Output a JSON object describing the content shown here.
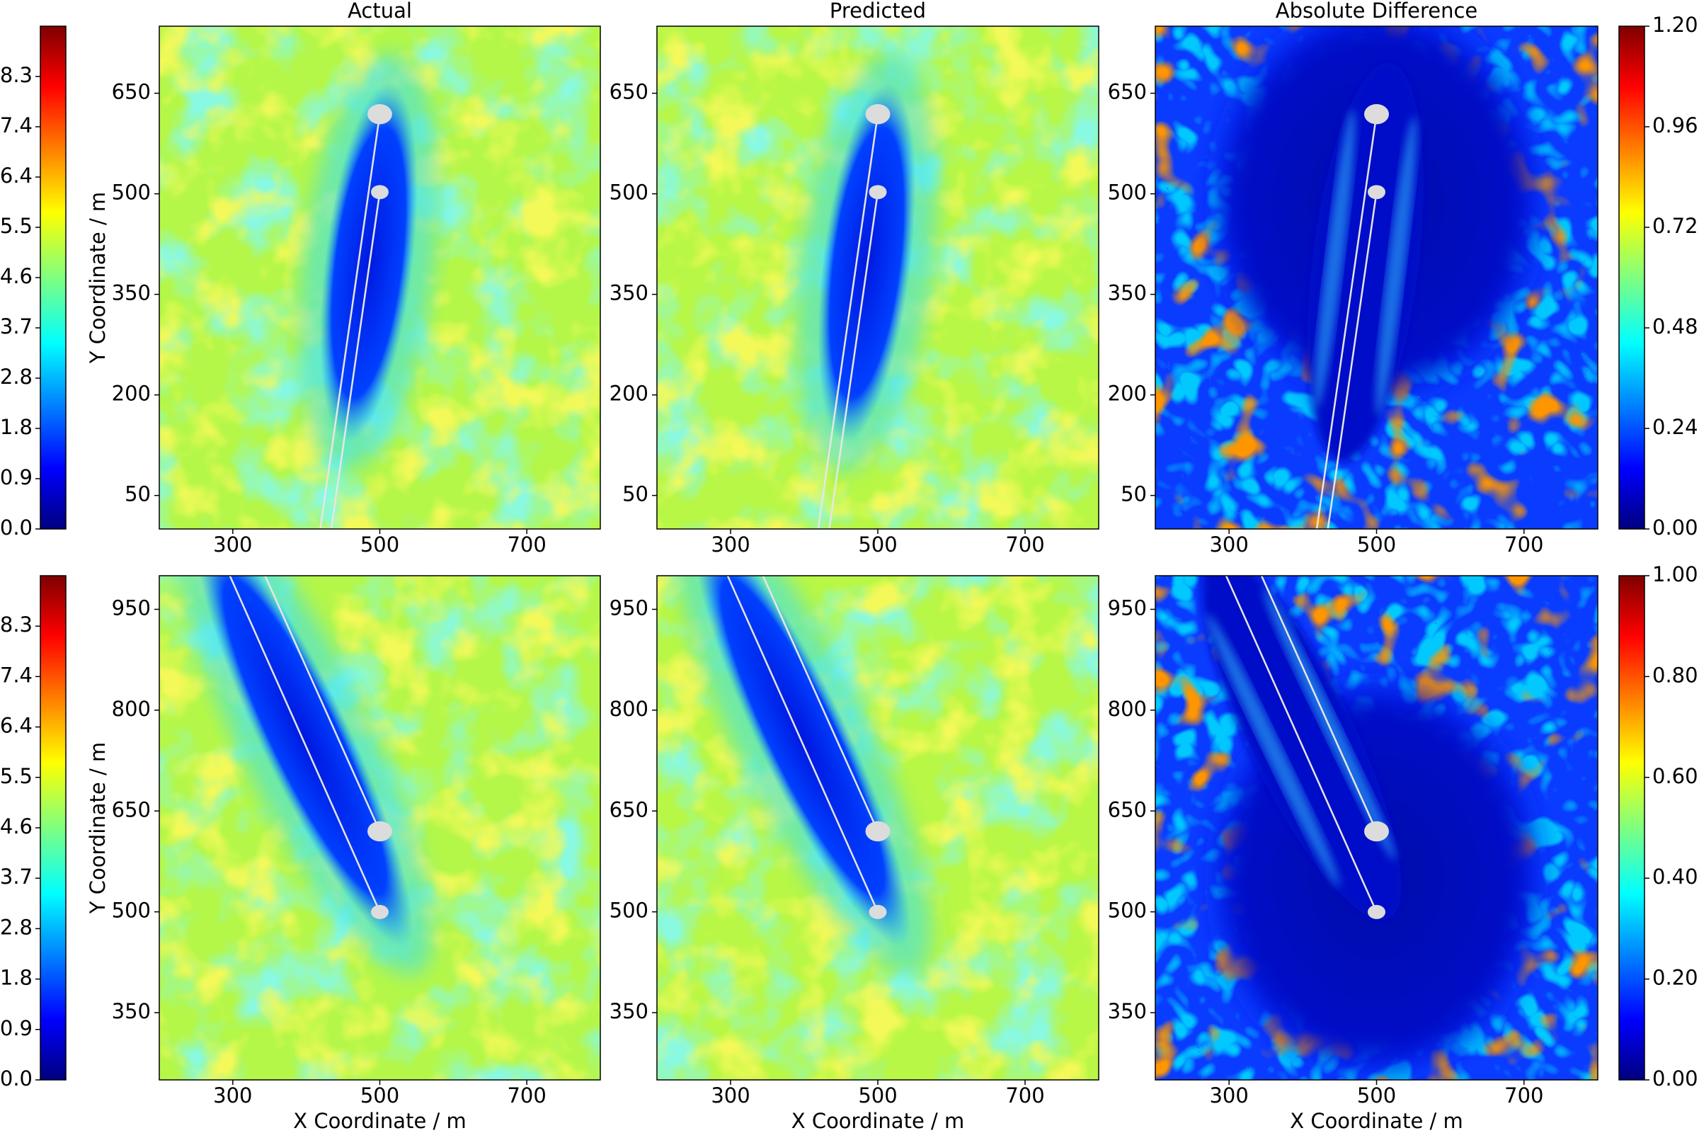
{
  "chart_data": [
    {
      "type": "heatmap",
      "title": "Actual",
      "ylabel": "Y Coordinate / m",
      "colormap": "jet",
      "field": "actual",
      "xlim": [
        200,
        800
      ],
      "ylim": [
        0,
        750
      ],
      "xticks": [
        300,
        500,
        700
      ],
      "yticks": [
        50,
        200,
        350,
        500,
        650
      ],
      "colorbar": {
        "side": "left",
        "lim": [
          0,
          9.2
        ],
        "ticks": [
          {
            "value": 0,
            "label": "0.0"
          },
          {
            "value": 0.92,
            "label": "0.9"
          },
          {
            "value": 1.84,
            "label": "1.8"
          },
          {
            "value": 2.76,
            "label": "2.8"
          },
          {
            "value": 3.68,
            "label": "3.7"
          },
          4.6,
          {
            "value": 5.52,
            "label": "5.5"
          },
          {
            "value": 6.44,
            "label": "6.4"
          },
          {
            "value": 7.36,
            "label": "7.4"
          },
          {
            "value": 8.28,
            "label": "8.3"
          }
        ]
      }
    },
    {
      "type": "heatmap",
      "title": "Predicted",
      "colormap": "jet",
      "field": "predicted",
      "xlim": [
        200,
        800
      ],
      "ylim": [
        0,
        750
      ],
      "xticks": [
        300,
        500,
        700
      ],
      "yticks": [
        50,
        200,
        350,
        500,
        650
      ]
    },
    {
      "type": "heatmap",
      "title": "Absolute Difference",
      "colormap": "jet",
      "field": "difference",
      "xlim": [
        200,
        800
      ],
      "ylim": [
        0,
        750
      ],
      "xticks": [
        300,
        500,
        700
      ],
      "yticks": [
        50,
        200,
        350,
        500,
        650
      ],
      "colorbar": {
        "side": "right",
        "lim": [
          0,
          1.2
        ],
        "ticks": [
          {
            "value": 0,
            "label": "0.00"
          },
          0.24,
          0.48,
          0.72,
          0.96,
          {
            "value": 1.2,
            "label": "1.20"
          }
        ]
      }
    },
    {
      "type": "heatmap",
      "xlabel": "X Coordinate / m",
      "ylabel": "Y Coordinate / m",
      "colormap": "jet",
      "field": "actual",
      "xlim": [
        200,
        800
      ],
      "ylim": [
        250,
        1000
      ],
      "xticks": [
        300,
        500,
        700
      ],
      "yticks": [
        350,
        500,
        650,
        800,
        950
      ],
      "colorbar": {
        "side": "left",
        "lim": [
          0,
          9.2
        ],
        "ticks": [
          {
            "value": 0,
            "label": "0.0"
          },
          {
            "value": 0.92,
            "label": "0.9"
          },
          {
            "value": 1.84,
            "label": "1.8"
          },
          {
            "value": 2.76,
            "label": "2.8"
          },
          {
            "value": 3.68,
            "label": "3.7"
          },
          4.6,
          {
            "value": 5.52,
            "label": "5.5"
          },
          {
            "value": 6.44,
            "label": "6.4"
          },
          {
            "value": 7.36,
            "label": "7.4"
          },
          {
            "value": 8.28,
            "label": "8.3"
          }
        ]
      }
    },
    {
      "type": "heatmap",
      "xlabel": "X Coordinate / m",
      "colormap": "jet",
      "field": "predicted",
      "xlim": [
        200,
        800
      ],
      "ylim": [
        250,
        1000
      ],
      "xticks": [
        300,
        500,
        700
      ],
      "yticks": [
        350,
        500,
        650,
        800,
        950
      ]
    },
    {
      "type": "heatmap",
      "xlabel": "X Coordinate / m",
      "colormap": "jet",
      "field": "difference",
      "xlim": [
        200,
        800
      ],
      "ylim": [
        250,
        1000
      ],
      "xticks": [
        300,
        500,
        700
      ],
      "yticks": [
        350,
        500,
        650,
        800,
        950
      ],
      "colorbar": {
        "side": "right",
        "lim": [
          0,
          1
        ],
        "ticks": [
          {
            "value": 0,
            "label": "0.00"
          },
          {
            "value": 0.2,
            "label": "0.20"
          },
          {
            "value": 0.4,
            "label": "0.40"
          },
          {
            "value": 0.6,
            "label": "0.60"
          },
          {
            "value": 0.8,
            "label": "0.80"
          },
          {
            "value": 1,
            "label": "1.00"
          }
        ]
      }
    }
  ]
}
